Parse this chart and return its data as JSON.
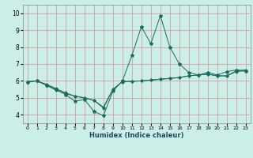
{
  "xlabel": "Humidex (Indice chaleur)",
  "bg_color": "#cceee8",
  "grid_color": "#d4a0a0",
  "line_color": "#1a6b5a",
  "xlim": [
    -0.5,
    23.5
  ],
  "ylim": [
    3.5,
    10.5
  ],
  "xticks": [
    0,
    1,
    2,
    3,
    4,
    5,
    6,
    7,
    8,
    9,
    10,
    11,
    12,
    13,
    14,
    15,
    16,
    17,
    18,
    19,
    20,
    21,
    22,
    23
  ],
  "yticks": [
    4,
    5,
    6,
    7,
    8,
    9,
    10
  ],
  "line1_x": [
    0,
    1,
    2,
    3,
    4,
    5,
    6,
    7,
    8,
    9,
    10,
    11,
    12,
    13,
    14,
    15,
    16,
    17,
    18,
    19,
    20,
    21,
    22,
    23
  ],
  "line1_y": [
    5.95,
    6.0,
    5.75,
    5.5,
    5.2,
    4.8,
    4.9,
    4.2,
    3.95,
    5.4,
    6.0,
    7.5,
    9.2,
    8.2,
    9.85,
    8.0,
    7.0,
    6.5,
    6.35,
    6.5,
    6.35,
    6.55,
    6.65,
    6.6
  ],
  "line2_x": [
    0,
    1,
    2,
    3,
    4,
    5,
    6,
    7,
    8,
    9,
    10,
    11,
    12,
    13,
    14,
    15,
    16,
    17,
    18,
    19,
    20,
    21,
    22,
    23
  ],
  "line2_y": [
    5.95,
    6.0,
    5.75,
    5.45,
    5.25,
    5.1,
    5.0,
    4.85,
    4.4,
    5.5,
    5.95,
    5.98,
    6.0,
    6.05,
    6.1,
    6.15,
    6.2,
    6.3,
    6.35,
    6.4,
    6.3,
    6.3,
    6.6,
    6.65
  ],
  "line3_x": [
    0,
    1,
    2,
    3,
    4,
    5,
    6,
    7,
    8,
    9,
    10,
    11,
    12,
    13,
    14,
    15,
    16,
    17,
    18,
    19,
    20,
    21,
    22,
    23
  ],
  "line3_y": [
    5.95,
    6.0,
    5.8,
    5.55,
    5.3,
    5.1,
    5.0,
    4.85,
    4.45,
    5.5,
    5.95,
    5.98,
    6.0,
    6.05,
    6.1,
    6.15,
    6.2,
    6.3,
    6.35,
    6.4,
    6.3,
    6.3,
    6.55,
    6.6
  ]
}
